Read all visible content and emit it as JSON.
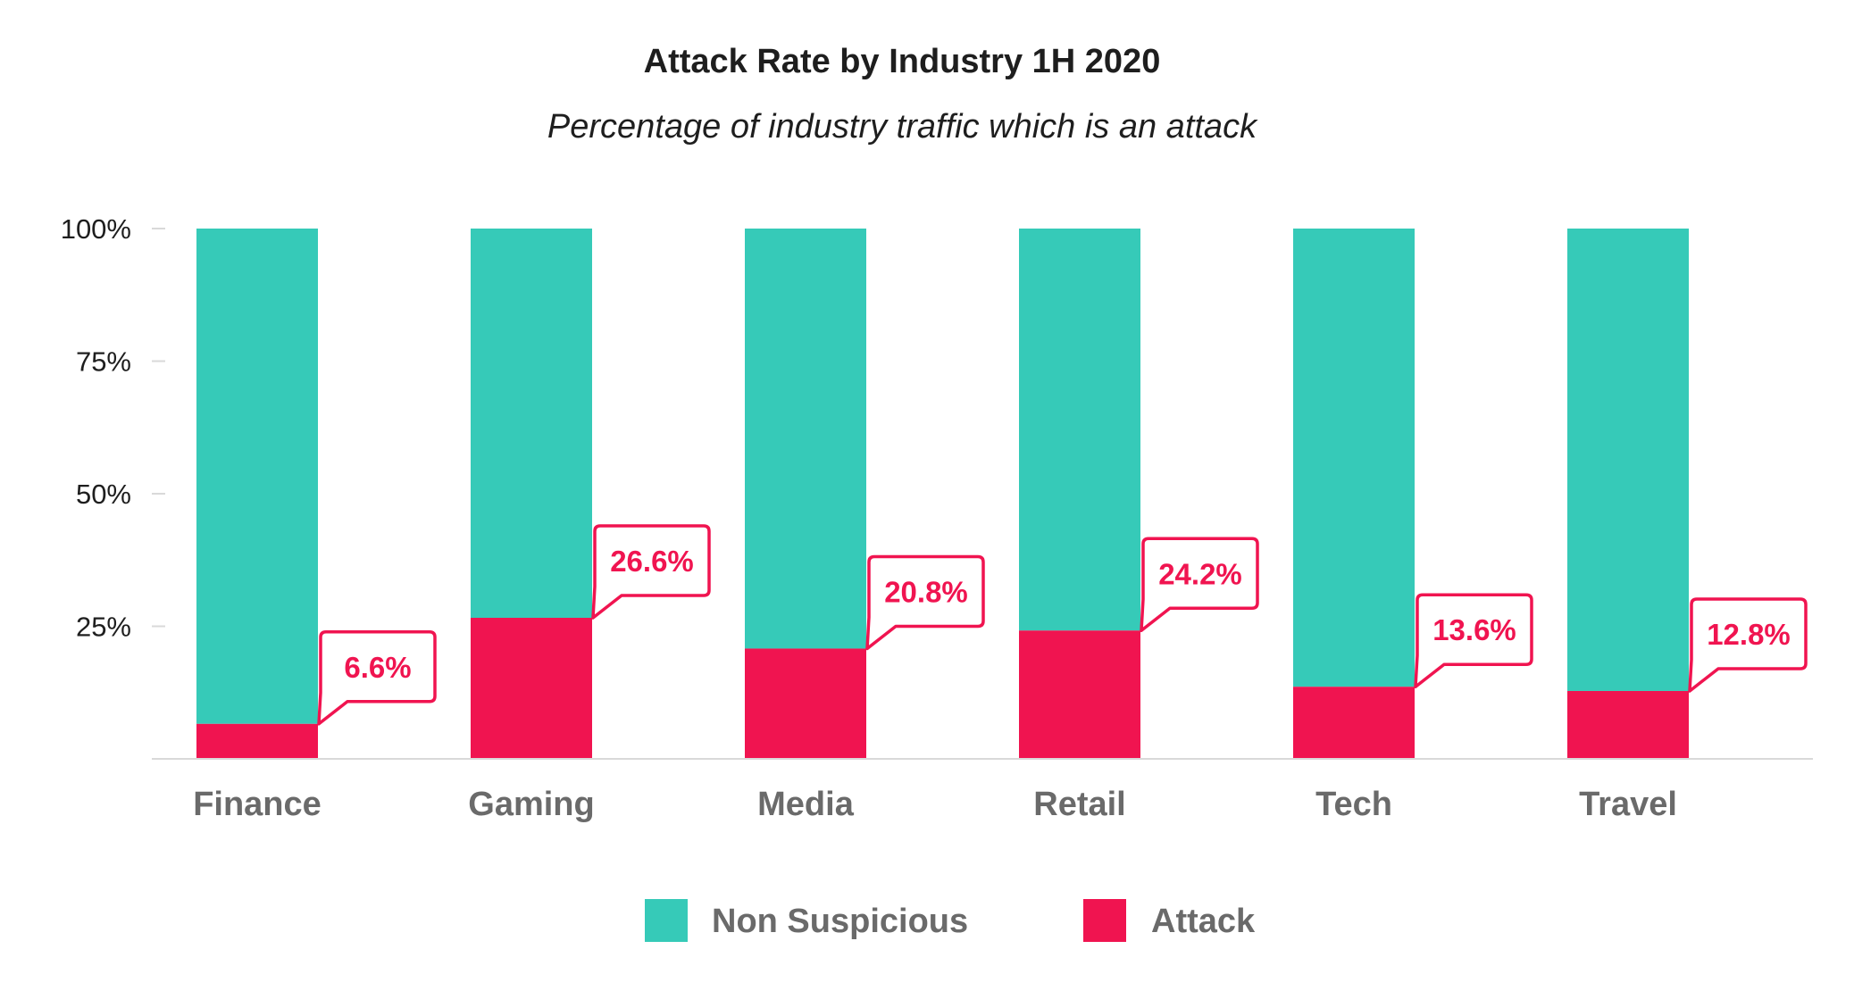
{
  "chart_data": {
    "type": "bar",
    "stacked": true,
    "title": "Attack Rate by Industry 1H 2020",
    "subtitle": "Percentage of industry traffic which is an attack",
    "categories": [
      "Finance",
      "Gaming",
      "Media",
      "Retail",
      "Tech",
      "Travel"
    ],
    "series": [
      {
        "name": "Attack",
        "values": [
          6.6,
          26.6,
          20.8,
          24.2,
          13.6,
          12.8
        ],
        "color": "#f01450"
      },
      {
        "name": "Non Suspicious",
        "values": [
          93.4,
          73.4,
          79.2,
          75.8,
          86.4,
          87.2
        ],
        "color": "#36cab8"
      }
    ],
    "data_labels": [
      "6.6%",
      "26.6%",
      "20.8%",
      "24.2%",
      "13.6%",
      "12.8%"
    ],
    "y_ticks": [
      "100%",
      "75%",
      "50%",
      "25%"
    ],
    "y_tick_values": [
      100,
      75,
      50,
      25
    ],
    "ylim": [
      0,
      100
    ],
    "xlabel": "",
    "ylabel": "",
    "grid": false,
    "legend": {
      "position": "bottom",
      "items": [
        {
          "label": "Non Suspicious",
          "color": "#36cab8"
        },
        {
          "label": "Attack",
          "color": "#f01450"
        }
      ]
    }
  }
}
